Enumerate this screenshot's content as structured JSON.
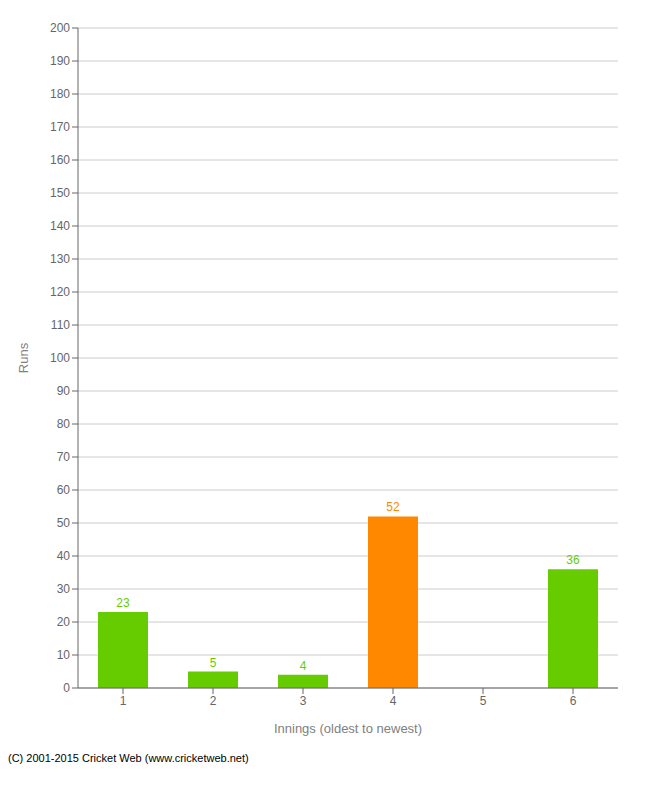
{
  "chart_data": {
    "type": "bar",
    "categories": [
      "1",
      "2",
      "3",
      "4",
      "5",
      "6"
    ],
    "values": [
      23,
      5,
      4,
      52,
      0,
      36
    ],
    "colors": [
      "#66cc00",
      "#66cc00",
      "#66cc00",
      "#ff8800",
      "#66cc00",
      "#66cc00"
    ],
    "xlabel": "Innings (oldest to newest)",
    "ylabel": "Runs",
    "ylim": [
      0,
      200
    ],
    "yticks": [
      0,
      10,
      20,
      30,
      40,
      50,
      60,
      70,
      80,
      90,
      100,
      110,
      120,
      130,
      140,
      150,
      160,
      170,
      180,
      190,
      200
    ],
    "grid": true,
    "data_labels": true,
    "annotations": [
      "(C) 2001-2015 Cricket Web (www.cricketweb.net)"
    ]
  }
}
